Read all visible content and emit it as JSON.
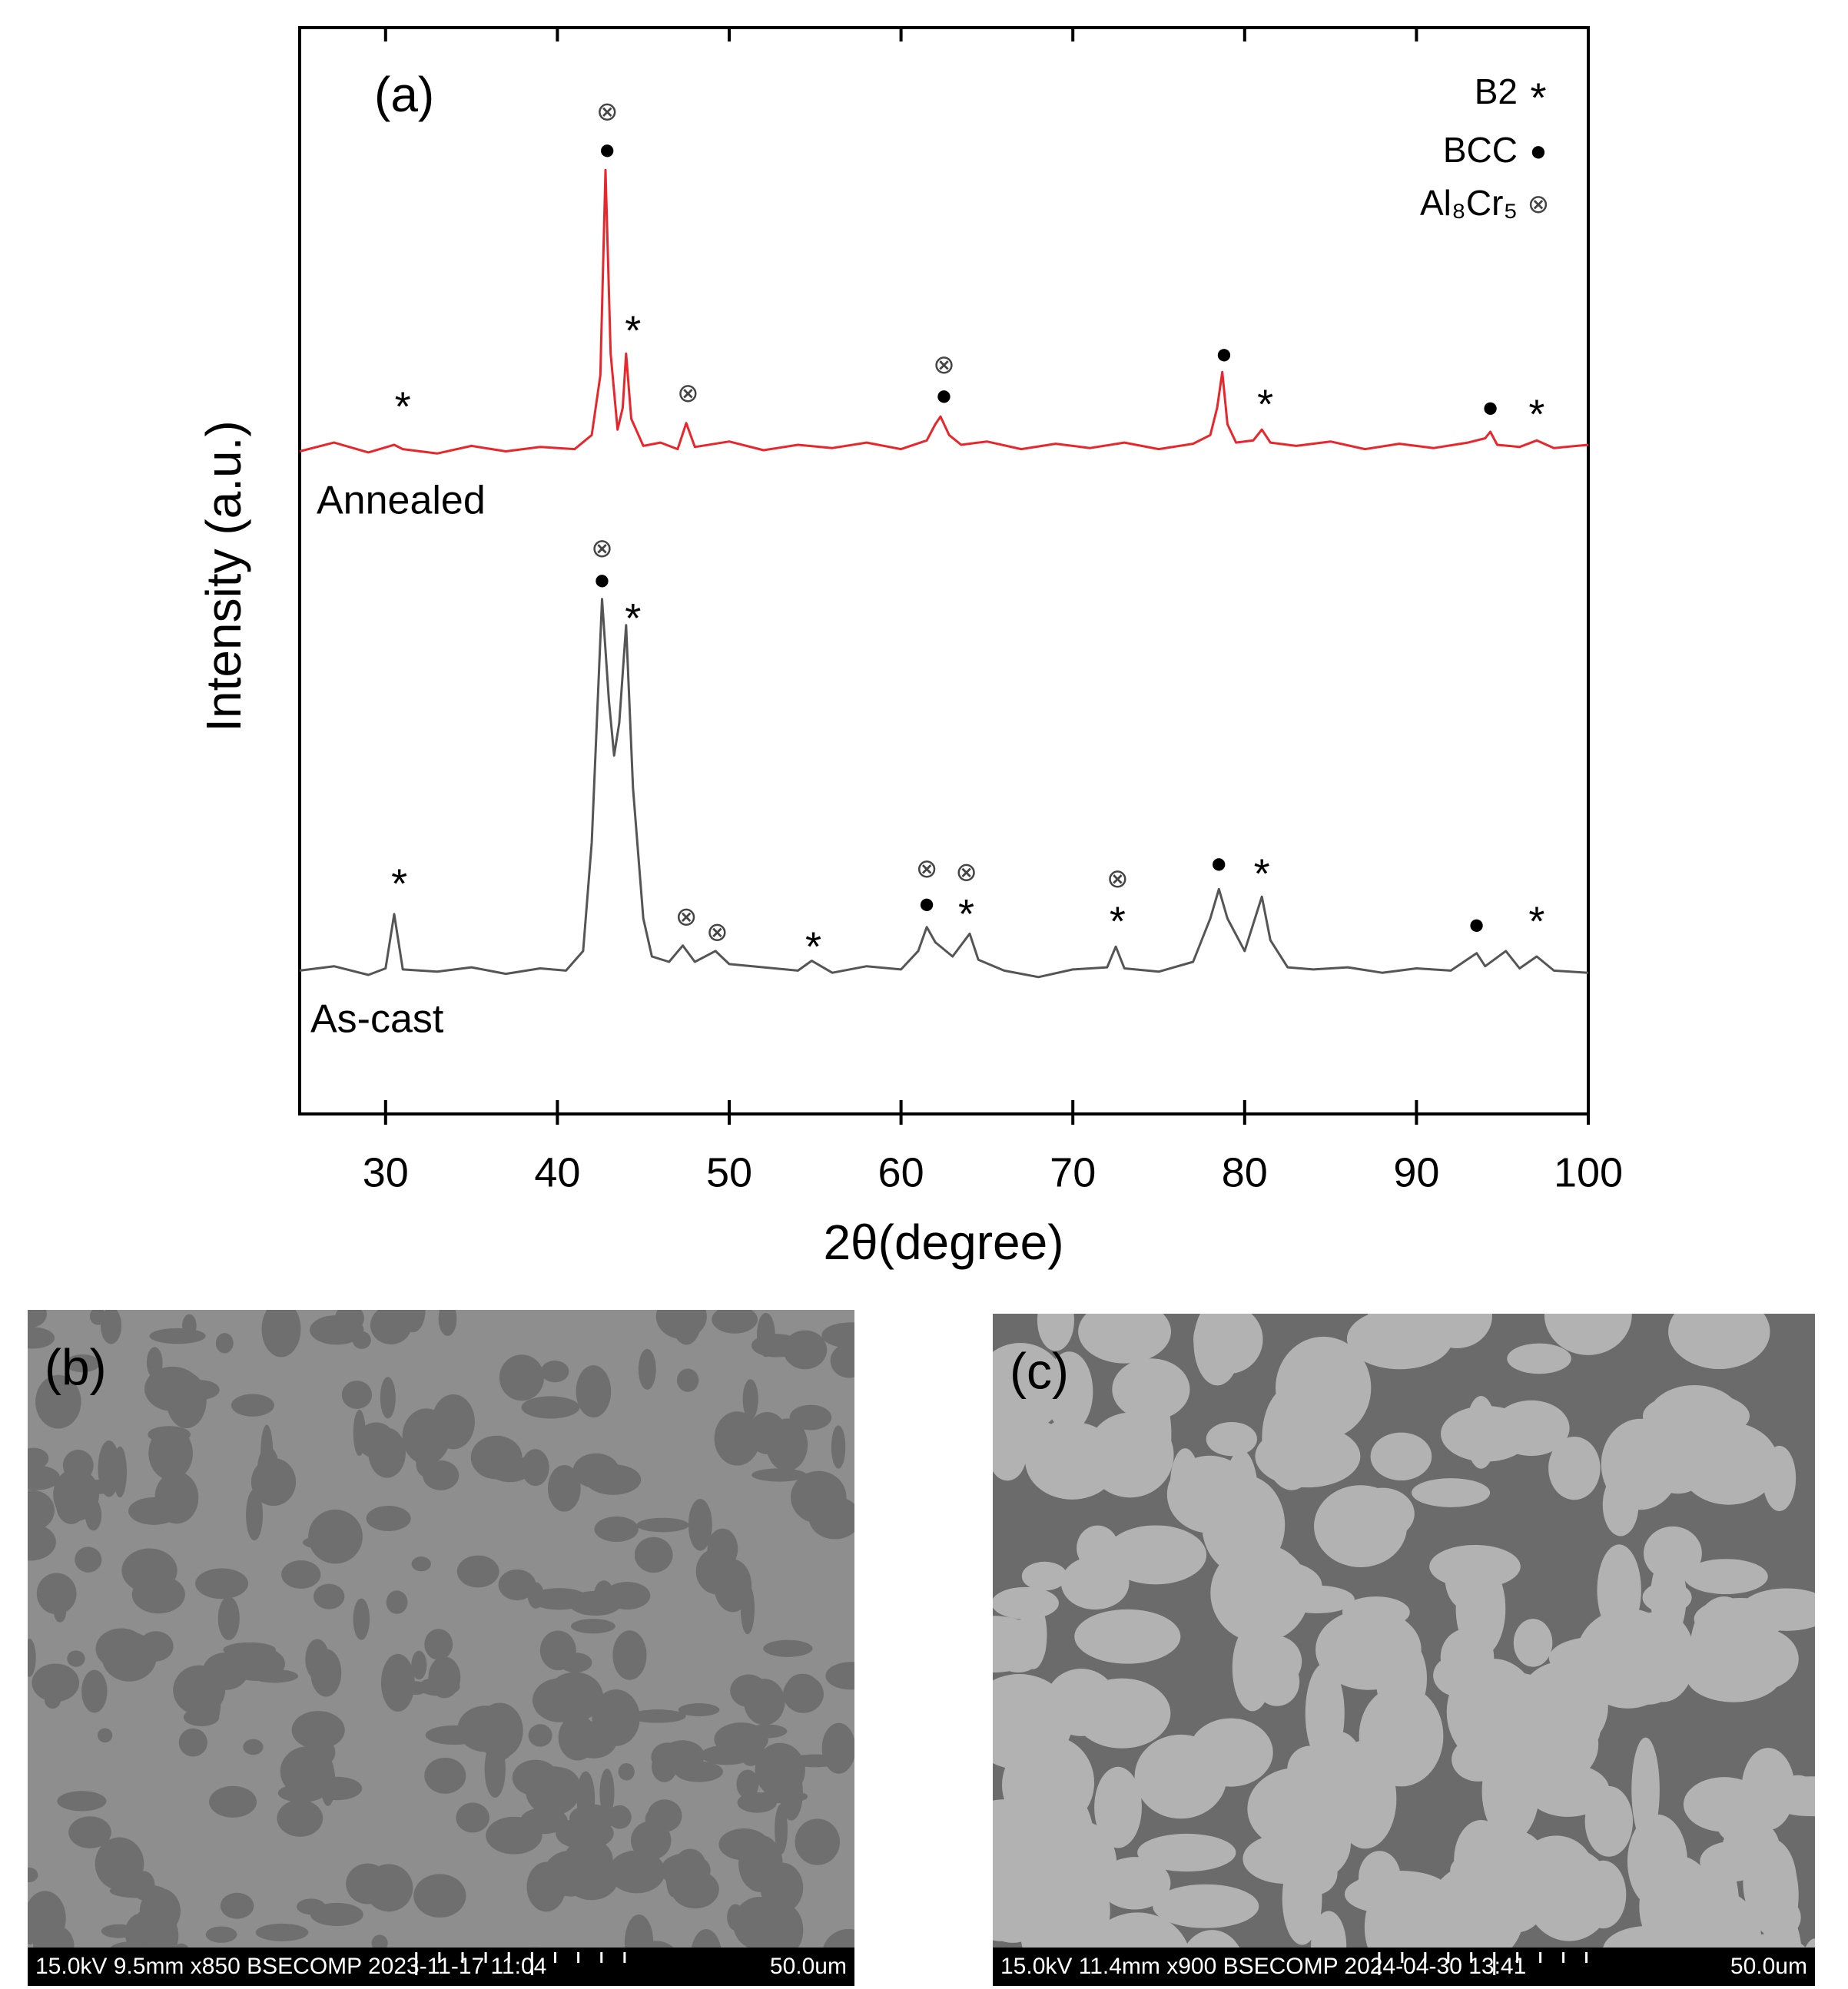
{
  "chart_data": {
    "type": "line",
    "label": "(a)",
    "xlabel": "2θ(degree)",
    "ylabel": "Intensity (a.u.)",
    "xlim": [
      25,
      100
    ],
    "xticks": [
      30,
      40,
      50,
      60,
      70,
      80,
      90,
      100
    ],
    "ylim": [
      0,
      100
    ],
    "series": [
      {
        "name": "Annealed",
        "color": "#e8262b",
        "x": [
          25,
          27,
          29,
          30.5,
          31,
          33,
          35,
          37,
          39,
          41,
          42,
          42.5,
          42.8,
          43.1,
          43.5,
          43.8,
          44,
          44.3,
          45,
          46,
          47,
          47.5,
          48,
          50,
          52,
          54,
          56,
          58,
          60,
          61.5,
          62,
          62.3,
          62.8,
          63.5,
          65,
          67,
          69,
          71,
          73,
          75,
          77,
          78,
          78.4,
          78.7,
          79,
          79.5,
          80.5,
          81,
          81.5,
          83,
          85,
          87,
          89,
          91,
          93,
          94,
          94.3,
          94.7,
          96,
          97,
          98,
          100
        ],
        "values": [
          61,
          61.8,
          60.9,
          61.6,
          61.2,
          60.8,
          61.5,
          61,
          61.4,
          61.2,
          62.5,
          68,
          86.9,
          70,
          63,
          65,
          70,
          64,
          61.5,
          61.8,
          61.2,
          63.6,
          61.4,
          61.9,
          61.1,
          61.6,
          61.3,
          61.8,
          61.2,
          62,
          63.5,
          64.2,
          62.5,
          61.6,
          61.9,
          61.2,
          61.7,
          61.3,
          61.8,
          61.2,
          61.7,
          62.5,
          65,
          68.3,
          63.5,
          61.8,
          62,
          63,
          61.8,
          61.5,
          61.9,
          61.2,
          61.7,
          61.3,
          61.8,
          62.2,
          62.8,
          61.6,
          61.4,
          62,
          61.3,
          61.6
        ]
      },
      {
        "name": "As-cast",
        "color": "#555555",
        "x": [
          25,
          27,
          29,
          30,
          30.5,
          31,
          33,
          35,
          37,
          39,
          40.5,
          41.5,
          42,
          42.6,
          43,
          43.3,
          43.6,
          44,
          44.4,
          45,
          45.5,
          46.5,
          47.3,
          48,
          49.2,
          50,
          52,
          54,
          54.8,
          56,
          58,
          60,
          61,
          61.5,
          62,
          63,
          64,
          64.5,
          66,
          68,
          70,
          72,
          72.5,
          73,
          75,
          77,
          78,
          78.5,
          79,
          80,
          81,
          81.5,
          82.5,
          84,
          86,
          88,
          90,
          92,
          93.5,
          94,
          95.2,
          96,
          97,
          98,
          100
        ],
        "values": [
          13.2,
          13.6,
          12.8,
          13.4,
          18.4,
          13.3,
          13.1,
          13.5,
          12.9,
          13.4,
          13.2,
          15,
          25,
          47.4,
          38,
          33,
          36,
          45,
          30,
          18,
          14.5,
          14,
          15.5,
          14,
          15,
          13.8,
          13.5,
          13.2,
          14.1,
          13,
          13.6,
          13.3,
          15,
          17.2,
          15.8,
          14.5,
          16.6,
          14.2,
          13.2,
          12.6,
          13.3,
          13.5,
          15.4,
          13.4,
          13.1,
          14,
          18,
          20.7,
          18,
          15,
          20,
          16,
          13.5,
          13.3,
          13.5,
          13,
          13.4,
          13.2,
          14.8,
          13.6,
          15,
          13.4,
          14.5,
          13.2,
          13
        ]
      }
    ],
    "legend": [
      {
        "label": "B2",
        "symbol": "*"
      },
      {
        "label": "BCC",
        "symbol": "●"
      },
      {
        "label": "Al₈Cr₅",
        "symbol": "⊗"
      }
    ],
    "markers": [
      {
        "symbol": "*",
        "x": 31,
        "y": 65.4
      },
      {
        "symbol": "⊗",
        "x": 42.9,
        "y": 92.1
      },
      {
        "symbol": "●",
        "x": 42.9,
        "y": 88.6
      },
      {
        "symbol": "*",
        "x": 44.4,
        "y": 72.4
      },
      {
        "symbol": "⊗",
        "x": 47.6,
        "y": 66.2
      },
      {
        "symbol": "⊗",
        "x": 62.5,
        "y": 68.8
      },
      {
        "symbol": "●",
        "x": 62.5,
        "y": 66
      },
      {
        "symbol": "●",
        "x": 78.8,
        "y": 69.8
      },
      {
        "symbol": "*",
        "x": 81.2,
        "y": 65.6
      },
      {
        "symbol": "●",
        "x": 94.3,
        "y": 64.9
      },
      {
        "symbol": "*",
        "x": 97,
        "y": 64.7
      },
      {
        "symbol": "⊗",
        "x": 42.6,
        "y": 51.9
      },
      {
        "symbol": "●",
        "x": 42.6,
        "y": 49
      },
      {
        "symbol": "*",
        "x": 44.4,
        "y": 45.9
      },
      {
        "symbol": "*",
        "x": 30.8,
        "y": 21.5
      },
      {
        "symbol": "⊗",
        "x": 47.5,
        "y": 18
      },
      {
        "symbol": "⊗",
        "x": 49.3,
        "y": 16.6
      },
      {
        "symbol": "*",
        "x": 54.9,
        "y": 15.7
      },
      {
        "symbol": "⊗",
        "x": 61.5,
        "y": 22.4
      },
      {
        "symbol": "●",
        "x": 61.5,
        "y": 19.2
      },
      {
        "symbol": "⊗",
        "x": 63.8,
        "y": 22.1
      },
      {
        "symbol": "*",
        "x": 63.8,
        "y": 18.7
      },
      {
        "symbol": "⊗",
        "x": 72.6,
        "y": 21.5
      },
      {
        "symbol": "*",
        "x": 72.6,
        "y": 18
      },
      {
        "symbol": "●",
        "x": 78.5,
        "y": 22.9
      },
      {
        "symbol": "*",
        "x": 81,
        "y": 22.4
      },
      {
        "symbol": "●",
        "x": 93.5,
        "y": 17.3
      },
      {
        "symbol": "*",
        "x": 97,
        "y": 18
      }
    ]
  },
  "panels": [
    {
      "label": "(b)",
      "info": "15.0kV 9.5mm x850 BSECOMP 2023-11-17 11:04",
      "scale": "50.0um"
    },
    {
      "label": "(c)",
      "info": "15.0kV 11.4mm x900 BSECOMP 2024-04-30 13:41",
      "scale": "50.0um"
    }
  ]
}
